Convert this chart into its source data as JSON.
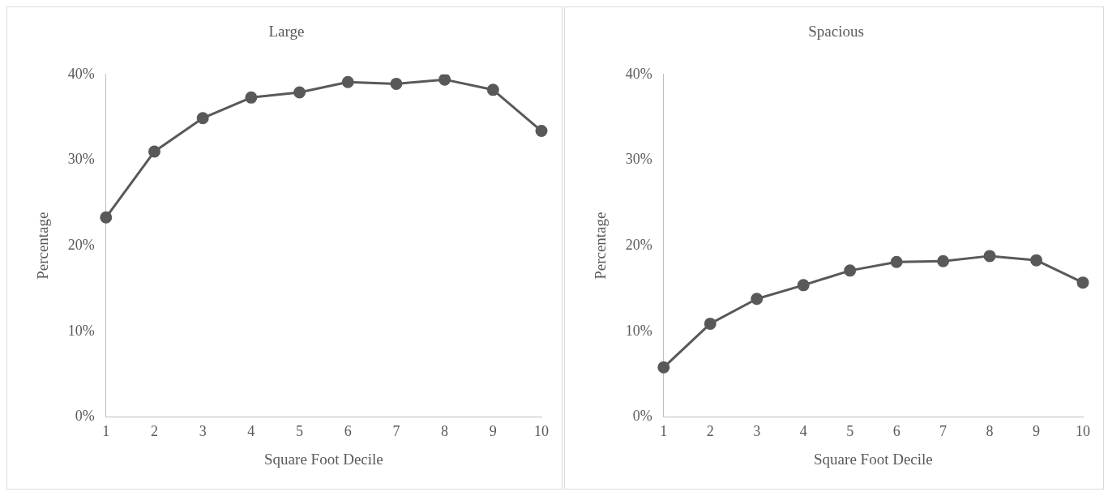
{
  "chart_data": [
    {
      "type": "line",
      "title": "Large",
      "xlabel": "Square Foot Decile",
      "ylabel": "Percentage",
      "categories": [
        "1",
        "2",
        "3",
        "4",
        "5",
        "6",
        "7",
        "8",
        "9",
        "10"
      ],
      "series": [
        {
          "color": "#595959",
          "values": [
            23.3,
            31.0,
            34.9,
            37.3,
            37.9,
            39.1,
            38.9,
            39.4,
            38.2,
            33.4
          ]
        }
      ],
      "ylim": [
        0,
        40
      ],
      "yticks": [
        {
          "value": 0,
          "label": "0%"
        },
        {
          "value": 10,
          "label": "10%"
        },
        {
          "value": 20,
          "label": "20%"
        },
        {
          "value": 30,
          "label": "30%"
        },
        {
          "value": 40,
          "label": "40%"
        }
      ],
      "grid": false,
      "legend": false,
      "marker": "circle",
      "line_style": "solid"
    },
    {
      "type": "line",
      "title": "Spacious",
      "xlabel": "Square Foot Decile",
      "ylabel": "Percentage",
      "categories": [
        "1",
        "2",
        "3",
        "4",
        "5",
        "6",
        "7",
        "8",
        "9",
        "10"
      ],
      "series": [
        {
          "color": "#595959",
          "values": [
            5.8,
            10.9,
            13.8,
            15.4,
            17.1,
            18.1,
            18.2,
            18.8,
            18.3,
            15.7
          ]
        }
      ],
      "ylim": [
        0,
        40
      ],
      "yticks": [
        {
          "value": 0,
          "label": "0%"
        },
        {
          "value": 10,
          "label": "10%"
        },
        {
          "value": 20,
          "label": "20%"
        },
        {
          "value": 30,
          "label": "30%"
        },
        {
          "value": 40,
          "label": "40%"
        }
      ],
      "grid": false,
      "legend": false,
      "marker": "circle",
      "line_style": "solid"
    }
  ]
}
